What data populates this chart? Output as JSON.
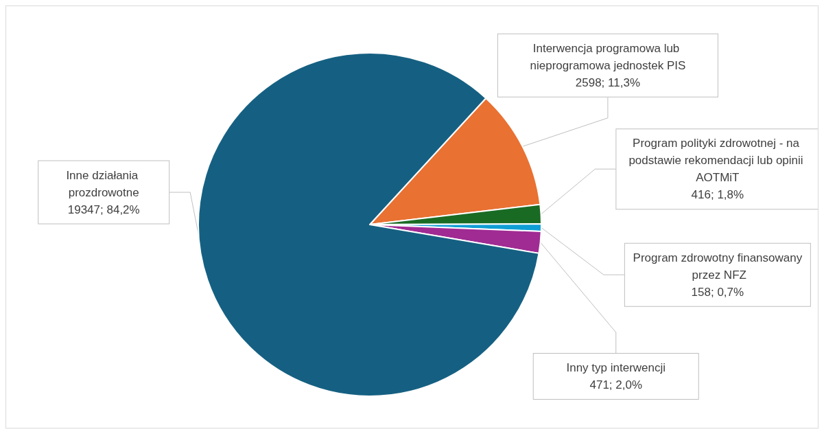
{
  "chart_data": {
    "type": "pie",
    "categories": [
      "Interwencja programowa lub nieprogramowa jednostek PIS",
      "Program polityki zdrowotnej - na podstawie rekomendacji lub opinii AOTMiT",
      "Program zdrowotny finansowany przez NFZ",
      "Inny typ interwencji",
      "Inne działania prozdrowotne"
    ],
    "values": [
      2598,
      416,
      158,
      471,
      19347
    ],
    "value_labels": [
      "2598; 11,3%",
      "416; 1,8%",
      "158; 0,7%",
      "471; 2,0%",
      "19347; 84,2%"
    ],
    "colors": [
      "#e97132",
      "#196b24",
      "#0f9ed5",
      "#a02b93",
      "#156082"
    ],
    "legend": false
  }
}
